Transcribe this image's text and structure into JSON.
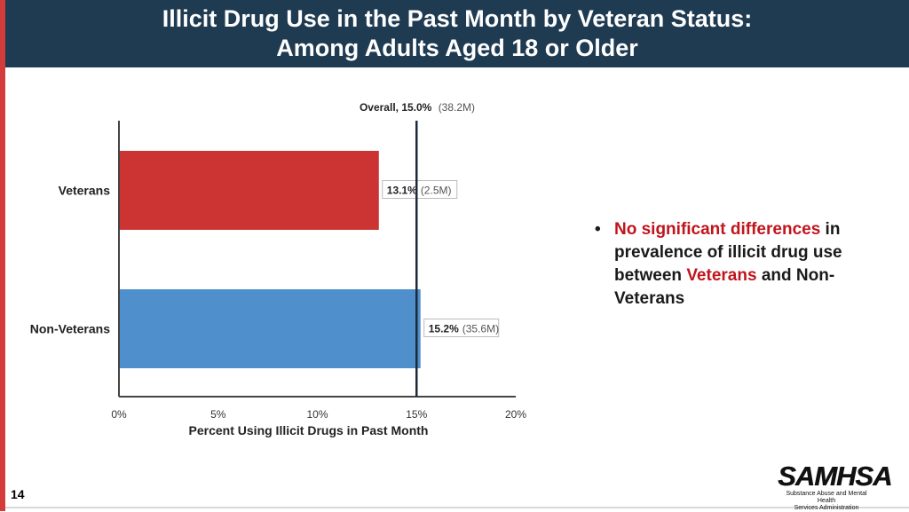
{
  "slide": {
    "title_line1": "Illicit Drug Use in the Past Month by Veteran Status:",
    "title_line2": "Among Adults Aged 18 or Older",
    "page_number": "14"
  },
  "bullet": {
    "highlight1": "No significant differences",
    "text1": " in prevalence of illicit drug use between ",
    "highlight2": "Veterans",
    "text2": " and Non-Veterans"
  },
  "logo": {
    "mark": "SAMHSA",
    "sub_line1": "Substance Abuse and Mental Health",
    "sub_line2": "Services Administration"
  },
  "chart_data": {
    "type": "bar",
    "orientation": "horizontal",
    "categories": [
      "Veterans",
      "Non-Veterans"
    ],
    "values": [
      13.1,
      15.2
    ],
    "value_labels": [
      "13.1%",
      "15.2%"
    ],
    "count_labels": [
      "(2.5M)",
      "(35.6M)"
    ],
    "colors": [
      "#cc3333",
      "#4e8fcc"
    ],
    "reference_line": {
      "value": 15.0,
      "label": "Overall, 15.0%",
      "count_label": "(38.2M)"
    },
    "xlim": [
      0,
      20
    ],
    "xticks": [
      0,
      5,
      10,
      15,
      20
    ],
    "xtick_labels": [
      "0%",
      "5%",
      "10%",
      "15%",
      "20%"
    ],
    "xlabel": "Percent Using Illicit Drugs in Past Month",
    "ylabel": "",
    "title": ""
  }
}
